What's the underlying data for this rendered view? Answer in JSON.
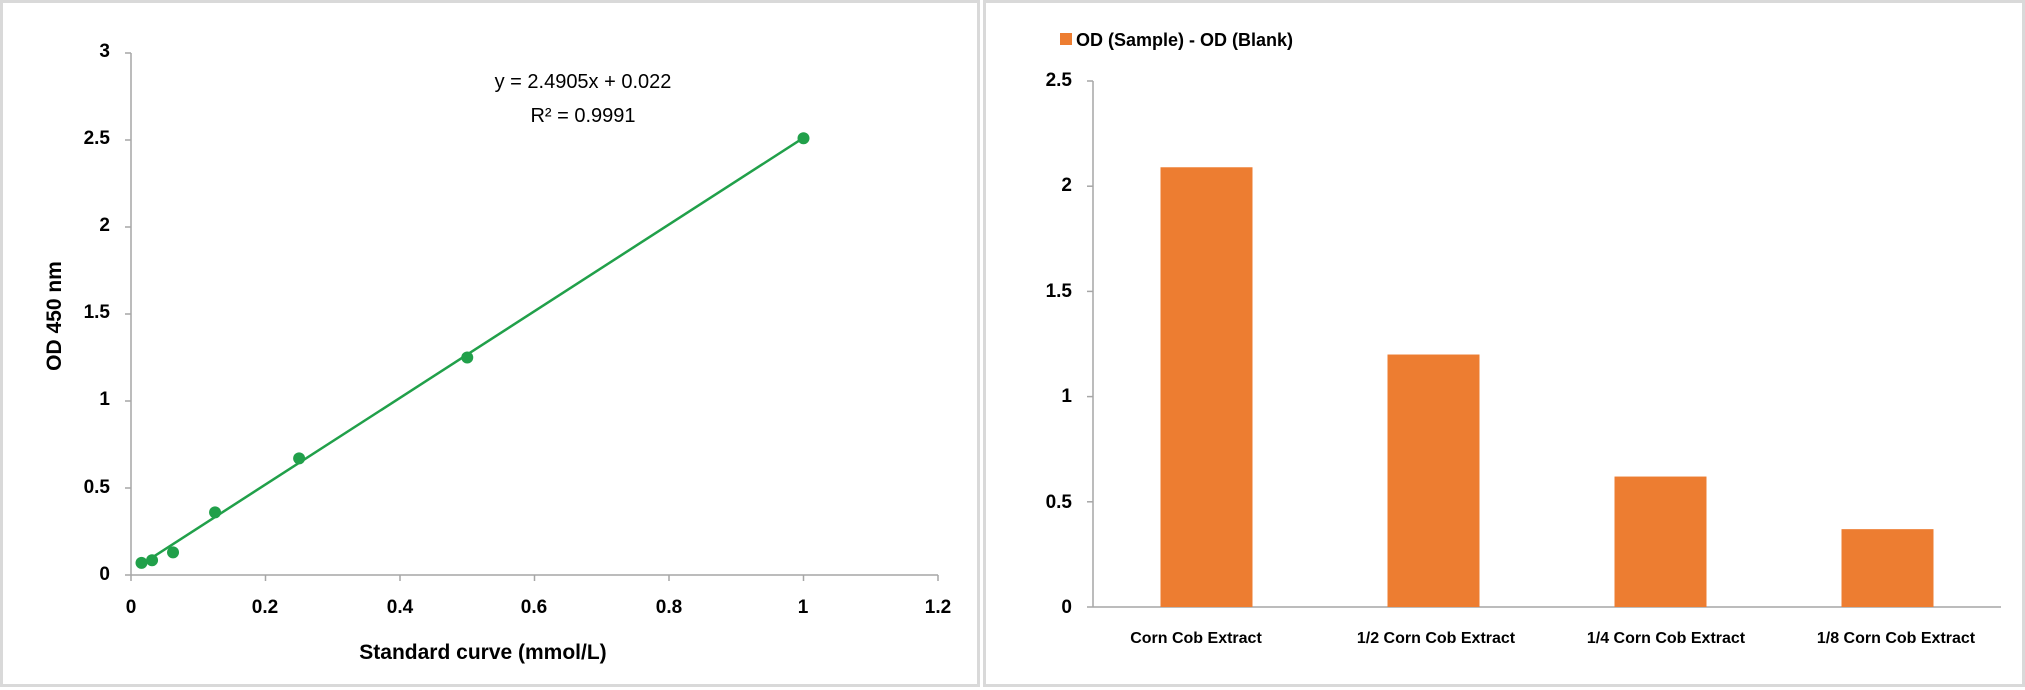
{
  "chart_data": [
    {
      "type": "scatter",
      "xlabel": "Standard curve (mmol/L)",
      "ylabel": "OD 450 nm",
      "xlim": [
        0,
        1.2
      ],
      "ylim": [
        0,
        3
      ],
      "x_ticks": [
        "0",
        "0.2",
        "0.4",
        "0.6",
        "0.8",
        "1",
        "1.2"
      ],
      "y_ticks": [
        "0",
        "0.5",
        "1",
        "1.5",
        "2",
        "2.5",
        "3"
      ],
      "points": [
        {
          "x": 0.0156,
          "y": 0.07
        },
        {
          "x": 0.0313,
          "y": 0.085
        },
        {
          "x": 0.0625,
          "y": 0.13
        },
        {
          "x": 0.125,
          "y": 0.36
        },
        {
          "x": 0.25,
          "y": 0.67
        },
        {
          "x": 0.5,
          "y": 1.25
        },
        {
          "x": 1.0,
          "y": 2.51
        }
      ],
      "trendline": {
        "slope": 2.4905,
        "intercept": 0.022,
        "x_from": 0.0156,
        "x_to": 1.0
      },
      "equation": "y = 2.4905x + 0.022",
      "r_squared": "R² = 0.9991",
      "color": "#21a04a",
      "grid": false
    },
    {
      "type": "bar",
      "categories": [
        "Corn Cob Extract",
        "1/2 Corn Cob Extract",
        "1/4 Corn Cob Extract",
        "1/8 Corn Cob Extract"
      ],
      "series": [
        {
          "name": "OD (Sample) - OD (Blank)",
          "values": [
            2.09,
            1.2,
            0.62,
            0.37
          ]
        }
      ],
      "ylim": [
        0,
        2.5
      ],
      "y_ticks": [
        "0",
        "0.5",
        "1",
        "1.5",
        "2",
        "2.5"
      ],
      "legend": "top-left",
      "color": "#ed7d31",
      "grid": false
    }
  ]
}
